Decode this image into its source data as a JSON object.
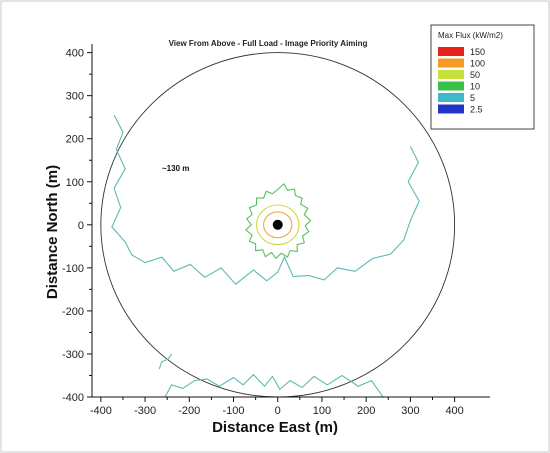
{
  "chart_data": {
    "type": "contour",
    "title": "View From Above - Full Load - Image Priority Aiming",
    "xlabel": "Distance East (m)",
    "ylabel": "Distance North (m)",
    "xlim": [
      -420,
      480
    ],
    "ylim": [
      -400,
      420
    ],
    "xticks": [
      -400,
      -300,
      -200,
      -100,
      0,
      100,
      200,
      300,
      400
    ],
    "yticks": [
      -400,
      -300,
      -200,
      -100,
      0,
      100,
      200,
      300,
      400
    ],
    "xtick_labels": [
      "-400",
      "-300",
      "-200",
      "-100",
      "0",
      "100",
      "200",
      "300",
      "400"
    ],
    "ytick_labels": [
      "-400",
      "-300",
      "-200",
      "-100",
      "0",
      "100",
      "200",
      "300",
      "400"
    ],
    "field_boundary_radius": 400,
    "tower": {
      "x": 0,
      "y": 0
    },
    "annotation": {
      "text": "~130 m",
      "x": -220,
      "y": 140
    },
    "legend": {
      "title": "Max Flux (kW/m2)",
      "position": "top-right",
      "levels": [
        {
          "label": "150",
          "color": "#e8231e"
        },
        {
          "label": "100",
          "color": "#f59a23"
        },
        {
          "label": "50",
          "color": "#c7df3a"
        },
        {
          "label": "10",
          "color": "#39c24a"
        },
        {
          "label": "5",
          "color": "#3fb8c9"
        },
        {
          "label": "2.5",
          "color": "#2036c8"
        }
      ]
    },
    "contours": [
      {
        "level": "5",
        "color": "#5fb9b3",
        "points": [
          [
            -370,
            255
          ],
          [
            -350,
            215
          ],
          [
            -365,
            175
          ],
          [
            -345,
            130
          ],
          [
            -370,
            85
          ],
          [
            -355,
            40
          ],
          [
            -375,
            -5
          ],
          [
            -345,
            -40
          ],
          [
            -330,
            -70
          ],
          [
            -300,
            -88
          ],
          [
            -262,
            -75
          ],
          [
            -235,
            -108
          ],
          [
            -198,
            -92
          ],
          [
            -165,
            -122
          ],
          [
            -128,
            -100
          ],
          [
            -95,
            -138
          ],
          [
            -55,
            -105
          ],
          [
            -25,
            -130
          ],
          [
            0,
            -110
          ],
          [
            15,
            -75
          ],
          [
            35,
            -120
          ],
          [
            70,
            -118
          ],
          [
            105,
            -128
          ],
          [
            135,
            -100
          ],
          [
            175,
            -108
          ],
          [
            215,
            -78
          ],
          [
            255,
            -68
          ],
          [
            285,
            -35
          ],
          [
            300,
            10
          ],
          [
            320,
            55
          ],
          [
            295,
            100
          ],
          [
            318,
            145
          ],
          [
            300,
            182
          ]
        ]
      },
      {
        "level": "5",
        "color": "#5fb9b3",
        "points": [
          [
            -255,
            -400
          ],
          [
            -240,
            -372
          ],
          [
            -215,
            -380
          ],
          [
            -188,
            -362
          ],
          [
            -160,
            -358
          ],
          [
            -132,
            -375
          ],
          [
            -100,
            -355
          ],
          [
            -78,
            -372
          ],
          [
            -55,
            -348
          ],
          [
            -30,
            -375
          ],
          [
            -12,
            -352
          ],
          [
            5,
            -382
          ],
          [
            28,
            -362
          ],
          [
            55,
            -378
          ],
          [
            82,
            -352
          ],
          [
            112,
            -372
          ],
          [
            145,
            -350
          ],
          [
            182,
            -375
          ],
          [
            212,
            -362
          ],
          [
            238,
            -400
          ]
        ]
      },
      {
        "level": "5",
        "color": "#5fb9b3",
        "points": [
          [
            -268,
            -335
          ],
          [
            -262,
            -318
          ],
          [
            -248,
            -312
          ],
          [
            -240,
            -300
          ]
        ]
      },
      {
        "level": "10",
        "color": "#5bbf5a",
        "points": [
          [
            0,
            82
          ],
          [
            14,
            95
          ],
          [
            22,
            80
          ],
          [
            38,
            83
          ],
          [
            40,
            68
          ],
          [
            55,
            62
          ],
          [
            52,
            48
          ],
          [
            68,
            38
          ],
          [
            60,
            24
          ],
          [
            74,
            10
          ],
          [
            62,
            -2
          ],
          [
            70,
            -16
          ],
          [
            56,
            -26
          ],
          [
            60,
            -42
          ],
          [
            44,
            -46
          ],
          [
            44,
            -62
          ],
          [
            28,
            -60
          ],
          [
            22,
            -75
          ],
          [
            8,
            -66
          ],
          [
            -4,
            -78
          ],
          [
            -14,
            -64
          ],
          [
            -28,
            -74
          ],
          [
            -34,
            -58
          ],
          [
            -50,
            -60
          ],
          [
            -50,
            -44
          ],
          [
            -64,
            -38
          ],
          [
            -58,
            -24
          ],
          [
            -72,
            -12
          ],
          [
            -60,
            0
          ],
          [
            -70,
            14
          ],
          [
            -58,
            24
          ],
          [
            -64,
            40
          ],
          [
            -48,
            46
          ],
          [
            -48,
            62
          ],
          [
            -32,
            62
          ],
          [
            -26,
            78
          ],
          [
            -12,
            72
          ]
        ]
      },
      {
        "level": "50",
        "color": "#cfdc44",
        "ellipse": {
          "cx": 0,
          "cy": 0,
          "rx": 48,
          "ry": 46
        }
      },
      {
        "level": "100",
        "color": "#f0a84a",
        "ellipse": {
          "cx": 0,
          "cy": 0,
          "rx": 32,
          "ry": 30
        }
      }
    ]
  }
}
